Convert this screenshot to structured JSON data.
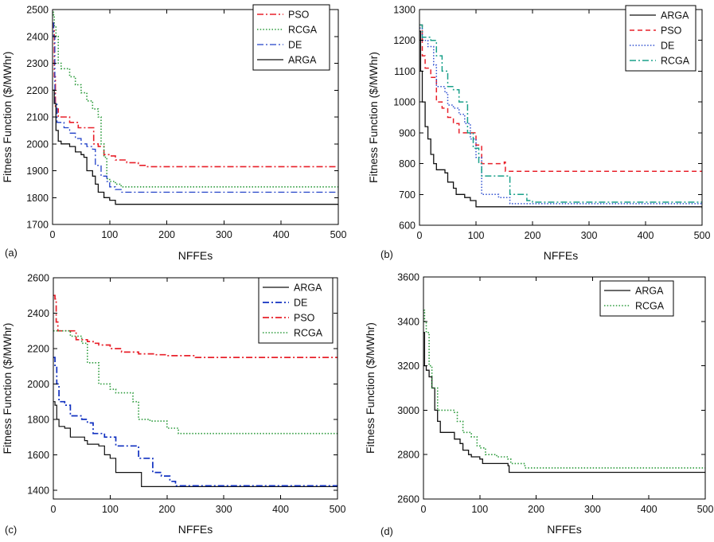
{
  "chart_data": [
    {
      "panel": "(a)",
      "type": "line",
      "xlabel": "NFFEs",
      "ylabel": "Fitness Function ($/MWhr)",
      "xlim": [
        0,
        500
      ],
      "ylim": [
        1700,
        2500
      ],
      "xticks": [
        0,
        100,
        200,
        300,
        400,
        500
      ],
      "yticks": [
        1700,
        1800,
        1900,
        2000,
        2100,
        2200,
        2300,
        2400,
        2500
      ],
      "legend_position": "top-right",
      "series": [
        {
          "name": "PSO",
          "color": "#e8202a",
          "style": "dashdot",
          "width": 1.6,
          "points": [
            [
              0,
              2450
            ],
            [
              2,
              2430
            ],
            [
              3,
              2250
            ],
            [
              5,
              2130
            ],
            [
              10,
              2100
            ],
            [
              30,
              2080
            ],
            [
              45,
              2060
            ],
            [
              70,
              2060
            ],
            [
              72,
              2000
            ],
            [
              80,
              1990
            ],
            [
              90,
              1960
            ],
            [
              100,
              1955
            ],
            [
              110,
              1940
            ],
            [
              130,
              1930
            ],
            [
              150,
              1920
            ],
            [
              165,
              1915
            ],
            [
              500,
              1915
            ]
          ]
        },
        {
          "name": "RCGA",
          "color": "#2a9a3a",
          "style": "dotted",
          "width": 1.6,
          "points": [
            [
              0,
              2490
            ],
            [
              2,
              2480
            ],
            [
              3,
              2440
            ],
            [
              6,
              2400
            ],
            [
              10,
              2300
            ],
            [
              15,
              2280
            ],
            [
              30,
              2250
            ],
            [
              40,
              2220
            ],
            [
              50,
              2190
            ],
            [
              60,
              2160
            ],
            [
              70,
              2130
            ],
            [
              80,
              2100
            ],
            [
              85,
              2000
            ],
            [
              90,
              1950
            ],
            [
              95,
              1870
            ],
            [
              100,
              1860
            ],
            [
              110,
              1850
            ],
            [
              120,
              1840
            ],
            [
              500,
              1840
            ]
          ]
        },
        {
          "name": "DE",
          "color": "#2040c8",
          "style": "dashdot",
          "width": 1.3,
          "points": [
            [
              0,
              2450
            ],
            [
              2,
              2400
            ],
            [
              4,
              2150
            ],
            [
              8,
              2080
            ],
            [
              20,
              2060
            ],
            [
              30,
              2040
            ],
            [
              40,
              2020
            ],
            [
              50,
              2000
            ],
            [
              60,
              1990
            ],
            [
              70,
              1980
            ],
            [
              75,
              1920
            ],
            [
              85,
              1880
            ],
            [
              95,
              1860
            ],
            [
              100,
              1840
            ],
            [
              110,
              1830
            ],
            [
              120,
              1820
            ],
            [
              500,
              1820
            ]
          ]
        },
        {
          "name": "ARGA",
          "color": "#111111",
          "style": "solid",
          "width": 1.3,
          "points": [
            [
              0,
              2200
            ],
            [
              3,
              2150
            ],
            [
              6,
              2050
            ],
            [
              10,
              2010
            ],
            [
              15,
              2000
            ],
            [
              30,
              1990
            ],
            [
              40,
              1970
            ],
            [
              50,
              1960
            ],
            [
              55,
              1950
            ],
            [
              60,
              1900
            ],
            [
              70,
              1880
            ],
            [
              75,
              1850
            ],
            [
              80,
              1820
            ],
            [
              90,
              1800
            ],
            [
              100,
              1790
            ],
            [
              110,
              1775
            ],
            [
              500,
              1775
            ]
          ]
        }
      ]
    },
    {
      "panel": "(b)",
      "type": "line",
      "xlabel": "NFFEs",
      "ylabel": "Fitness Function ($/MWhr)",
      "xlim": [
        0,
        500
      ],
      "ylim": [
        600,
        1300
      ],
      "xticks": [
        0,
        100,
        200,
        300,
        400,
        500
      ],
      "yticks": [
        600,
        700,
        800,
        900,
        1000,
        1100,
        1200,
        1300
      ],
      "legend_position": "top-right",
      "series": [
        {
          "name": "ARGA",
          "color": "#111111",
          "style": "solid",
          "width": 1.3,
          "points": [
            [
              0,
              1230
            ],
            [
              2,
              1100
            ],
            [
              5,
              1000
            ],
            [
              10,
              920
            ],
            [
              15,
              880
            ],
            [
              20,
              830
            ],
            [
              25,
              800
            ],
            [
              30,
              780
            ],
            [
              45,
              770
            ],
            [
              50,
              740
            ],
            [
              60,
              720
            ],
            [
              65,
              700
            ],
            [
              80,
              690
            ],
            [
              90,
              680
            ],
            [
              100,
              660
            ],
            [
              500,
              655
            ]
          ]
        },
        {
          "name": "PSO",
          "color": "#e8202a",
          "style": "dashed",
          "width": 1.5,
          "points": [
            [
              0,
              1250
            ],
            [
              5,
              1150
            ],
            [
              10,
              1110
            ],
            [
              20,
              1080
            ],
            [
              30,
              1000
            ],
            [
              40,
              980
            ],
            [
              50,
              950
            ],
            [
              60,
              930
            ],
            [
              70,
              900
            ],
            [
              90,
              900
            ],
            [
              100,
              860
            ],
            [
              110,
              800
            ],
            [
              150,
              805
            ],
            [
              152,
              775
            ],
            [
              500,
              775
            ]
          ]
        },
        {
          "name": "DE",
          "color": "#3050d0",
          "style": "dotted",
          "width": 1.5,
          "points": [
            [
              0,
              1240
            ],
            [
              5,
              1200
            ],
            [
              15,
              1180
            ],
            [
              25,
              1120
            ],
            [
              30,
              1050
            ],
            [
              45,
              1030
            ],
            [
              50,
              990
            ],
            [
              60,
              980
            ],
            [
              70,
              960
            ],
            [
              80,
              930
            ],
            [
              90,
              880
            ],
            [
              100,
              820
            ],
            [
              110,
              700
            ],
            [
              140,
              690
            ],
            [
              160,
              670
            ],
            [
              500,
              670
            ]
          ]
        },
        {
          "name": "RCGA",
          "color": "#1aa08a",
          "style": "dashdot",
          "width": 1.5,
          "points": [
            [
              0,
              1250
            ],
            [
              5,
              1210
            ],
            [
              20,
              1200
            ],
            [
              30,
              1150
            ],
            [
              40,
              1100
            ],
            [
              50,
              1050
            ],
            [
              60,
              1040
            ],
            [
              70,
              1000
            ],
            [
              80,
              1000
            ],
            [
              85,
              900
            ],
            [
              95,
              850
            ],
            [
              105,
              800
            ],
            [
              110,
              760
            ],
            [
              150,
              760
            ],
            [
              160,
              700
            ],
            [
              190,
              680
            ],
            [
              200,
              675
            ],
            [
              500,
              675
            ]
          ]
        }
      ]
    },
    {
      "panel": "(c)",
      "type": "line",
      "xlabel": "NFFEs",
      "ylabel": "Fitness Function ($/MWhr)",
      "xlim": [
        0,
        500
      ],
      "ylim": [
        1350,
        2600
      ],
      "xticks": [
        0,
        100,
        200,
        300,
        400,
        500
      ],
      "yticks": [
        1400,
        1600,
        1800,
        2000,
        2200,
        2400,
        2600
      ],
      "legend_position": "top-right",
      "series": [
        {
          "name": "ARGA",
          "color": "#111111",
          "style": "solid",
          "width": 1.2,
          "points": [
            [
              0,
              1900
            ],
            [
              3,
              1880
            ],
            [
              6,
              1800
            ],
            [
              10,
              1760
            ],
            [
              20,
              1750
            ],
            [
              30,
              1700
            ],
            [
              50,
              1700
            ],
            [
              55,
              1680
            ],
            [
              60,
              1660
            ],
            [
              80,
              1650
            ],
            [
              90,
              1600
            ],
            [
              100,
              1580
            ],
            [
              110,
              1500
            ],
            [
              140,
              1500
            ],
            [
              155,
              1420
            ],
            [
              500,
              1420
            ]
          ]
        },
        {
          "name": "DE",
          "color": "#1030c0",
          "style": "dashdot",
          "width": 1.7,
          "points": [
            [
              0,
              2150
            ],
            [
              3,
              2100
            ],
            [
              6,
              2000
            ],
            [
              10,
              1900
            ],
            [
              20,
              1880
            ],
            [
              30,
              1820
            ],
            [
              50,
              1800
            ],
            [
              60,
              1780
            ],
            [
              70,
              1720
            ],
            [
              90,
              1700
            ],
            [
              110,
              1650
            ],
            [
              150,
              1580
            ],
            [
              175,
              1500
            ],
            [
              190,
              1480
            ],
            [
              205,
              1450
            ],
            [
              215,
              1425
            ],
            [
              500,
              1420
            ]
          ]
        },
        {
          "name": "PSO",
          "color": "#e8202a",
          "style": "dashdot",
          "width": 1.7,
          "points": [
            [
              0,
              2500
            ],
            [
              3,
              2480
            ],
            [
              5,
              2350
            ],
            [
              8,
              2300
            ],
            [
              30,
              2300
            ],
            [
              40,
              2250
            ],
            [
              60,
              2240
            ],
            [
              70,
              2230
            ],
            [
              80,
              2220
            ],
            [
              100,
              2200
            ],
            [
              120,
              2180
            ],
            [
              150,
              2170
            ],
            [
              180,
              2165
            ],
            [
              200,
              2160
            ],
            [
              250,
              2150
            ],
            [
              500,
              2150
            ]
          ]
        },
        {
          "name": "RCGA",
          "color": "#2a9a3a",
          "style": "dotted",
          "width": 1.6,
          "points": [
            [
              0,
              2300
            ],
            [
              30,
              2270
            ],
            [
              50,
              2230
            ],
            [
              60,
              2120
            ],
            [
              80,
              2000
            ],
            [
              100,
              1970
            ],
            [
              110,
              1950
            ],
            [
              140,
              1900
            ],
            [
              150,
              1800
            ],
            [
              170,
              1790
            ],
            [
              200,
              1750
            ],
            [
              220,
              1720
            ],
            [
              500,
              1720
            ]
          ]
        }
      ]
    },
    {
      "panel": "(d)",
      "type": "line",
      "xlabel": "NFFEs",
      "ylabel": "Fitness Function ($/MWhr)",
      "xlim": [
        0,
        500
      ],
      "ylim": [
        2600,
        3600
      ],
      "xticks": [
        0,
        100,
        200,
        300,
        400,
        500
      ],
      "yticks": [
        2600,
        2800,
        3000,
        3200,
        3400,
        3600
      ],
      "legend_position": "top-right",
      "series": [
        {
          "name": "ARGA",
          "color": "#111111",
          "style": "solid",
          "width": 1.3,
          "points": [
            [
              0,
              3350
            ],
            [
              2,
              3200
            ],
            [
              5,
              3180
            ],
            [
              10,
              3150
            ],
            [
              15,
              3100
            ],
            [
              20,
              3000
            ],
            [
              25,
              2950
            ],
            [
              30,
              2900
            ],
            [
              50,
              2900
            ],
            [
              55,
              2870
            ],
            [
              65,
              2850
            ],
            [
              70,
              2820
            ],
            [
              80,
              2800
            ],
            [
              85,
              2790
            ],
            [
              100,
              2780
            ],
            [
              105,
              2760
            ],
            [
              150,
              2750
            ],
            [
              152,
              2720
            ],
            [
              500,
              2720
            ]
          ]
        },
        {
          "name": "RCGA",
          "color": "#2a9a3a",
          "style": "dotted",
          "width": 1.6,
          "points": [
            [
              0,
              3450
            ],
            [
              2,
              3400
            ],
            [
              5,
              3350
            ],
            [
              10,
              3200
            ],
            [
              15,
              3100
            ],
            [
              25,
              3000
            ],
            [
              55,
              2990
            ],
            [
              60,
              2950
            ],
            [
              70,
              2900
            ],
            [
              85,
              2880
            ],
            [
              95,
              2840
            ],
            [
              100,
              2830
            ],
            [
              110,
              2800
            ],
            [
              130,
              2790
            ],
            [
              150,
              2780
            ],
            [
              155,
              2760
            ],
            [
              180,
              2740
            ],
            [
              500,
              2740
            ]
          ]
        }
      ]
    }
  ]
}
